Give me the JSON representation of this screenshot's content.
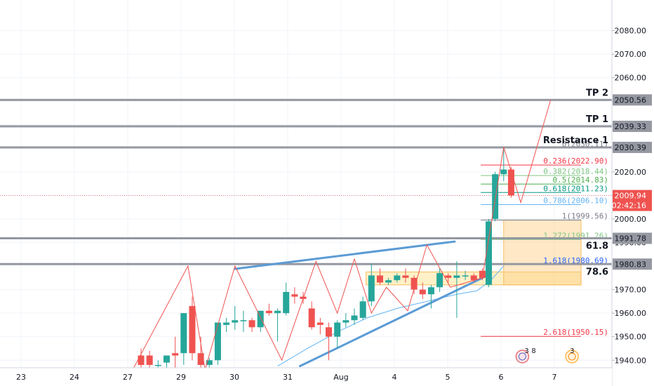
{
  "chart_data": {
    "type": "candlestick",
    "x_tick_labels": [
      "23",
      "24",
      "27",
      "29",
      "30",
      "31",
      "Aug",
      "4",
      "5",
      "6",
      "7"
    ],
    "x_tick_day_index": [
      0,
      1,
      2,
      3,
      4,
      5,
      6,
      7,
      8,
      9,
      10
    ],
    "y_ticks": [
      "1940.00",
      "1950.00",
      "1960.00",
      "1970.00",
      "1980.00",
      "1990.00",
      "2000.00",
      "2010.00",
      "2020.00",
      "2030.00",
      "2040.00",
      "2050.00",
      "2060.00",
      "2070.00",
      "2080.00"
    ],
    "y_range": [
      1936.8,
      2093.0
    ],
    "candles": [
      {
        "t": 2.25,
        "o": 1942.0,
        "h": 1945.0,
        "l": 1936.0,
        "c": 1938.0
      },
      {
        "t": 2.41,
        "o": 1942.0,
        "h": 1944.0,
        "l": 1936.0,
        "c": 1938.0
      },
      {
        "t": 2.57,
        "o": 1938.0,
        "h": 1940.0,
        "l": 1936.0,
        "c": 1938.0
      },
      {
        "t": 2.73,
        "o": 1939.0,
        "h": 1942.0,
        "l": 1936.0,
        "c": 1942.0
      },
      {
        "t": 2.89,
        "o": 1943.0,
        "h": 1950.0,
        "l": 1936.0,
        "c": 1942.0
      },
      {
        "t": 3.05,
        "o": 1943.0,
        "h": 1960.0,
        "l": 1938.0,
        "c": 1960.0
      },
      {
        "t": 3.21,
        "o": 1963.0,
        "h": 1967.0,
        "l": 1940.0,
        "c": 1943.0
      },
      {
        "t": 3.37,
        "o": 1943.0,
        "h": 1950.0,
        "l": 1936.0,
        "c": 1938.0
      },
      {
        "t": 3.53,
        "o": 1938.0,
        "h": 1941.0,
        "l": 1936.0,
        "c": 1940.0
      },
      {
        "t": 3.69,
        "o": 1940.0,
        "h": 1956.0,
        "l": 1938.0,
        "c": 1956.0
      },
      {
        "t": 3.85,
        "o": 1955.0,
        "h": 1958.0,
        "l": 1952.0,
        "c": 1956.0
      },
      {
        "t": 4.01,
        "o": 1956.0,
        "h": 1963.0,
        "l": 1953.0,
        "c": 1957.0
      },
      {
        "t": 4.17,
        "o": 1957.0,
        "h": 1961.0,
        "l": 1952.0,
        "c": 1957.0
      },
      {
        "t": 4.33,
        "o": 1957.0,
        "h": 1958.0,
        "l": 1952.0,
        "c": 1954.0
      },
      {
        "t": 4.49,
        "o": 1954.0,
        "h": 1961.0,
        "l": 1952.0,
        "c": 1961.0
      },
      {
        "t": 4.65,
        "o": 1961.0,
        "h": 1964.0,
        "l": 1959.0,
        "c": 1960.0
      },
      {
        "t": 4.81,
        "o": 1960.0,
        "h": 1962.0,
        "l": 1948.0,
        "c": 1961.0
      },
      {
        "t": 4.97,
        "o": 1960.0,
        "h": 1973.0,
        "l": 1959.0,
        "c": 1969.0
      },
      {
        "t": 5.13,
        "o": 1968.0,
        "h": 1971.0,
        "l": 1964.0,
        "c": 1967.0
      },
      {
        "t": 5.29,
        "o": 1967.0,
        "h": 1969.0,
        "l": 1964.0,
        "c": 1966.0
      },
      {
        "t": 5.45,
        "o": 1962.0,
        "h": 1965.0,
        "l": 1953.0,
        "c": 1954.0
      },
      {
        "t": 5.61,
        "o": 1956.0,
        "h": 1958.0,
        "l": 1951.0,
        "c": 1955.0
      },
      {
        "t": 5.77,
        "o": 1954.0,
        "h": 1956.0,
        "l": 1940.0,
        "c": 1950.0
      },
      {
        "t": 5.93,
        "o": 1950.0,
        "h": 1957.0,
        "l": 1945.0,
        "c": 1956.0
      },
      {
        "t": 6.09,
        "o": 1956.0,
        "h": 1960.0,
        "l": 1954.0,
        "c": 1957.0
      },
      {
        "t": 6.25,
        "o": 1957.0,
        "h": 1962.0,
        "l": 1955.0,
        "c": 1959.0
      },
      {
        "t": 6.41,
        "o": 1958.0,
        "h": 1967.0,
        "l": 1957.0,
        "c": 1965.0
      },
      {
        "t": 6.57,
        "o": 1965.0,
        "h": 1981.0,
        "l": 1963.0,
        "c": 1976.0
      },
      {
        "t": 6.73,
        "o": 1976.0,
        "h": 1979.0,
        "l": 1972.0,
        "c": 1973.0
      },
      {
        "t": 6.89,
        "o": 1973.0,
        "h": 1975.0,
        "l": 1972.0,
        "c": 1974.0
      },
      {
        "t": 7.05,
        "o": 1974.0,
        "h": 1977.0,
        "l": 1973.0,
        "c": 1976.0
      },
      {
        "t": 7.21,
        "o": 1976.0,
        "h": 1979.0,
        "l": 1973.0,
        "c": 1975.0
      },
      {
        "t": 7.37,
        "o": 1975.0,
        "h": 1976.0,
        "l": 1968.0,
        "c": 1970.0
      },
      {
        "t": 7.53,
        "o": 1970.0,
        "h": 1973.0,
        "l": 1966.0,
        "c": 1968.0
      },
      {
        "t": 7.69,
        "o": 1968.0,
        "h": 1972.0,
        "l": 1962.0,
        "c": 1971.0
      },
      {
        "t": 7.85,
        "o": 1971.0,
        "h": 1979.0,
        "l": 1969.0,
        "c": 1977.0
      },
      {
        "t": 8.01,
        "o": 1976.0,
        "h": 1977.0,
        "l": 1973.0,
        "c": 1975.0
      },
      {
        "t": 8.17,
        "o": 1975.0,
        "h": 1982.0,
        "l": 1958.0,
        "c": 1976.0
      },
      {
        "t": 8.33,
        "o": 1976.0,
        "h": 1978.0,
        "l": 1974.0,
        "c": 1976.0
      },
      {
        "t": 8.49,
        "o": 1976.0,
        "h": 1977.0,
        "l": 1973.0,
        "c": 1974.0
      },
      {
        "t": 8.65,
        "o": 1978.0,
        "h": 1979.0,
        "l": 1974.0,
        "c": 1975.0
      },
      {
        "t": 8.77,
        "o": 1972.0,
        "h": 2000.0,
        "l": 1971.0,
        "c": 1999.0
      },
      {
        "t": 8.89,
        "o": 2000.0,
        "h": 2020.0,
        "l": 1999.0,
        "c": 2019.0
      },
      {
        "t": 9.05,
        "o": 2019.0,
        "h": 2030.5,
        "l": 2016.0,
        "c": 2021.0
      },
      {
        "t": 9.19,
        "o": 2021.0,
        "h": 2022.0,
        "l": 2009.0,
        "c": 2010.0
      }
    ],
    "candle_colors": {
      "up": "#26a69a",
      "down": "#ef5350"
    },
    "horizontal_levels": [
      {
        "price": 2050.56,
        "label": "TP 2",
        "value_label": "2050.56"
      },
      {
        "price": 2039.33,
        "label": "TP 1",
        "value_label": "2039.33"
      },
      {
        "price": 2030.39,
        "label": "Resistance 1",
        "value_label": "2030.39"
      },
      {
        "price": 1991.78,
        "label": "61.8",
        "value_label": "1991.78"
      },
      {
        "price": 1980.83,
        "label": "78.6",
        "value_label": "1980.83"
      }
    ],
    "current_price": {
      "value": "2009.94",
      "countdown": "02:42:16"
    },
    "fibonacci": [
      {
        "ratio": "0",
        "price": 2030.11,
        "text": "0(2030.11)",
        "color": "#787b86"
      },
      {
        "ratio": "0.236",
        "price": 2022.9,
        "text": "0.236(2022.90)",
        "color": "#f23645"
      },
      {
        "ratio": "0.382",
        "price": 2018.44,
        "text": "0.382(2018.44)",
        "color": "#81c784"
      },
      {
        "ratio": "0.5",
        "price": 2014.83,
        "text": "0.5(2014.83)",
        "color": "#4caf50"
      },
      {
        "ratio": "0.618",
        "price": 2011.23,
        "text": "0.618(2011.23)",
        "color": "#089981"
      },
      {
        "ratio": "0.786",
        "price": 2006.1,
        "text": "0.786(2006.10)",
        "color": "#64b5f6"
      },
      {
        "ratio": "1",
        "price": 1999.56,
        "text": "1(1999.56)",
        "color": "#787b86"
      },
      {
        "ratio": "1.272",
        "price": 1991.26,
        "text": "1.272(1991.26)",
        "color": "#81c784"
      },
      {
        "ratio": "1.618",
        "price": 1980.69,
        "text": "1.618(1980.69)",
        "color": "#2962ff"
      },
      {
        "ratio": "2.618",
        "price": 1950.15,
        "text": "2.618(1950.15)",
        "color": "#f23645"
      }
    ],
    "zones": [
      {
        "from_t": 6.47,
        "to_t": 10.5,
        "top": 1977.5,
        "bottom": 1972.0,
        "color": "#ffe082"
      },
      {
        "from_t": 9.05,
        "to_t": 10.5,
        "top": 1999.5,
        "bottom": 1972.0,
        "color": "#ffcc80"
      }
    ],
    "zigzag": [
      [
        2.0,
        1932.0
      ],
      [
        3.13,
        1980.0
      ],
      [
        3.45,
        1936.0
      ],
      [
        4.01,
        1980.0
      ],
      [
        4.89,
        1940.0
      ],
      [
        5.53,
        1982.0
      ],
      [
        5.93,
        1960.0
      ],
      [
        6.25,
        1983.0
      ],
      [
        6.57,
        1960.0
      ],
      [
        6.85,
        1971.0
      ],
      [
        7.25,
        1961.0
      ],
      [
        7.61,
        1989.0
      ],
      [
        8.05,
        1971.0
      ],
      [
        8.65,
        1975.0
      ],
      [
        9.05,
        2030.5
      ],
      [
        9.37,
        2007.0
      ],
      [
        9.93,
        2050.56
      ]
    ],
    "trendlines": [
      {
        "from": [
          4.01,
          1978.8
        ],
        "to": [
          8.13,
          1990.4
        ],
        "color": "#5b9bd5"
      },
      {
        "from": [
          5.23,
          1937.5
        ],
        "to": [
          8.79,
          1976.5
        ],
        "color": "#5b9bd5"
      }
    ],
    "moving_average": [
      [
        4.81,
        1937.5
      ],
      [
        5.37,
        1945.0
      ],
      [
        5.93,
        1952.0
      ],
      [
        6.49,
        1958.0
      ],
      [
        7.05,
        1962.0
      ],
      [
        7.61,
        1965.0
      ],
      [
        8.17,
        1968.0
      ],
      [
        8.55,
        1969.5
      ],
      [
        8.81,
        1974.0
      ],
      [
        9.05,
        1980.0
      ]
    ],
    "event_badges": [
      "3",
      "8",
      "3"
    ]
  }
}
